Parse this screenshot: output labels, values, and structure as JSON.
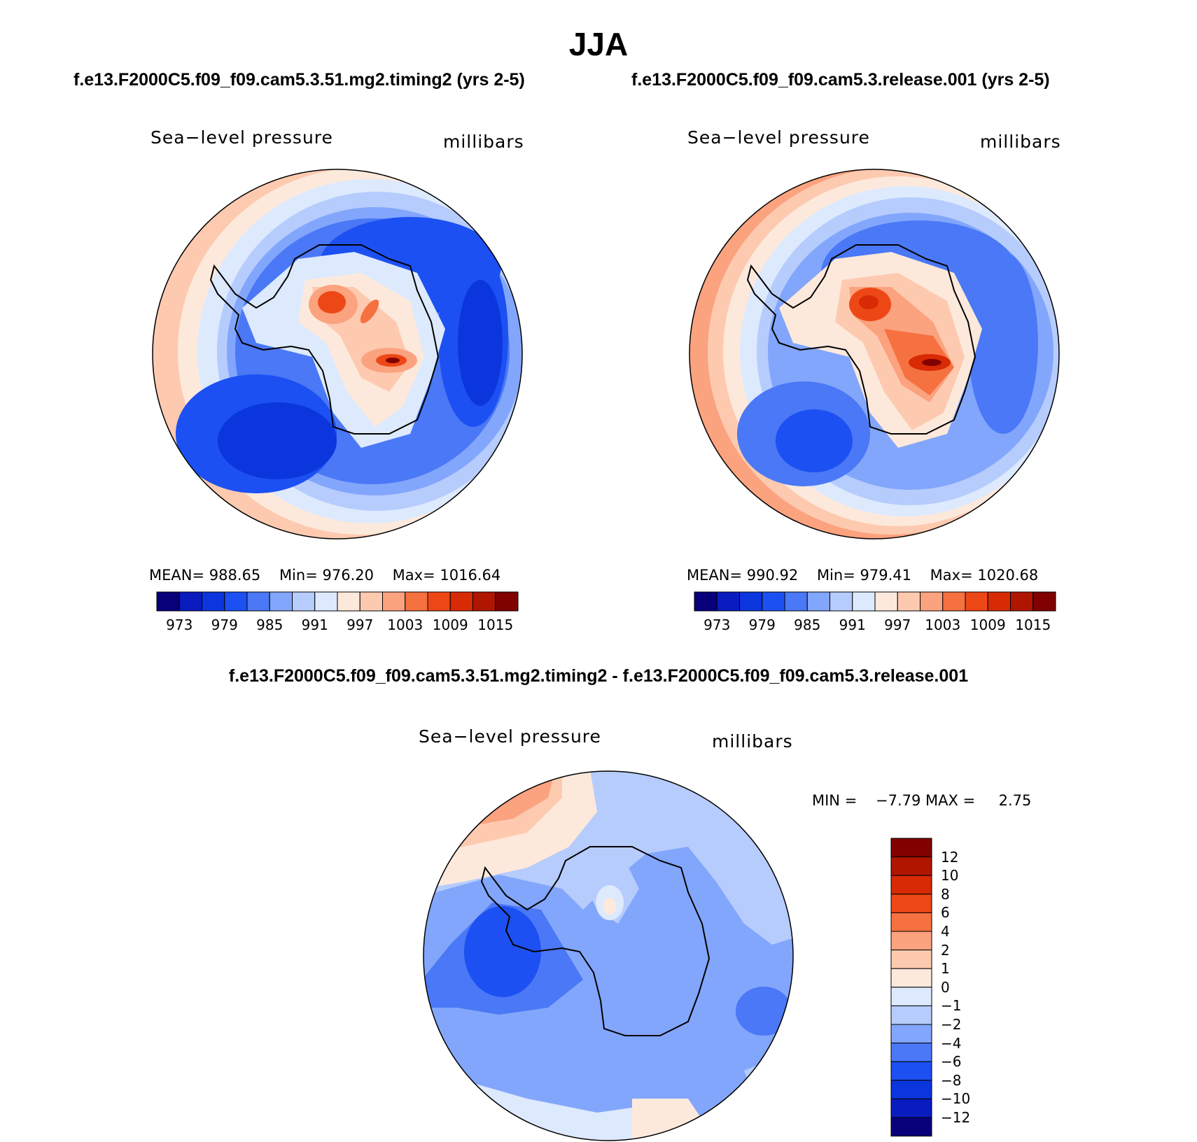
{
  "title": "JJA",
  "panels": [
    {
      "case_title": "f.e13.F2000C5.f09_f09.cam5.3.51.mg2.timing2 (yrs 2-5)",
      "variable": "Sea−level pressure",
      "units": "millibars",
      "stats": {
        "mean_label": "MEAN=",
        "mean": "988.65",
        "min_label": "Min=",
        "min": "976.20",
        "max_label": "Max=",
        "max": "1016.64"
      }
    },
    {
      "case_title": "f.e13.F2000C5.f09_f09.cam5.3.release.001 (yrs 2-5)",
      "variable": "Sea−level pressure",
      "units": "millibars",
      "stats": {
        "mean_label": "MEAN=",
        "mean": "990.92",
        "min_label": "Min=",
        "min": "979.41",
        "max_label": "Max=",
        "max": "1020.68"
      }
    }
  ],
  "diff_panel": {
    "title": "f.e13.F2000C5.f09_f09.cam5.3.51.mg2.timing2 - f.e13.F2000C5.f09_f09.cam5.3.release.001",
    "variable": "Sea−level pressure",
    "units": "millibars",
    "min_label": "MIN =",
    "min": "−7.79",
    "max_label": "MAX =",
    "max": "2.75"
  },
  "colorbar_horizontal": {
    "colors": [
      "#08007a",
      "#0a1cc0",
      "#0b36dd",
      "#1c50f2",
      "#4a78f6",
      "#82a6fb",
      "#b6ccfd",
      "#dde9fd",
      "#fde9dc",
      "#fdcab0",
      "#fba27f",
      "#f67140",
      "#ee4716",
      "#d82a04",
      "#b01500",
      "#810000"
    ],
    "labels": [
      "973",
      "979",
      "985",
      "991",
      "997",
      "1003",
      "1009",
      "1015"
    ]
  },
  "colorbar_vertical": {
    "colors": [
      "#810000",
      "#b01500",
      "#d82a04",
      "#ee4716",
      "#f67140",
      "#fba27f",
      "#fdcab0",
      "#fde9dc",
      "#dde9fd",
      "#b6ccfd",
      "#82a6fb",
      "#4a78f6",
      "#1c50f2",
      "#0b36dd",
      "#0a1cc0",
      "#08007a"
    ],
    "labels": [
      "12",
      "10",
      "8",
      "6",
      "4",
      "2",
      "1",
      "0",
      "−1",
      "−2",
      "−4",
      "−6",
      "−8",
      "−10",
      "−12"
    ]
  }
}
